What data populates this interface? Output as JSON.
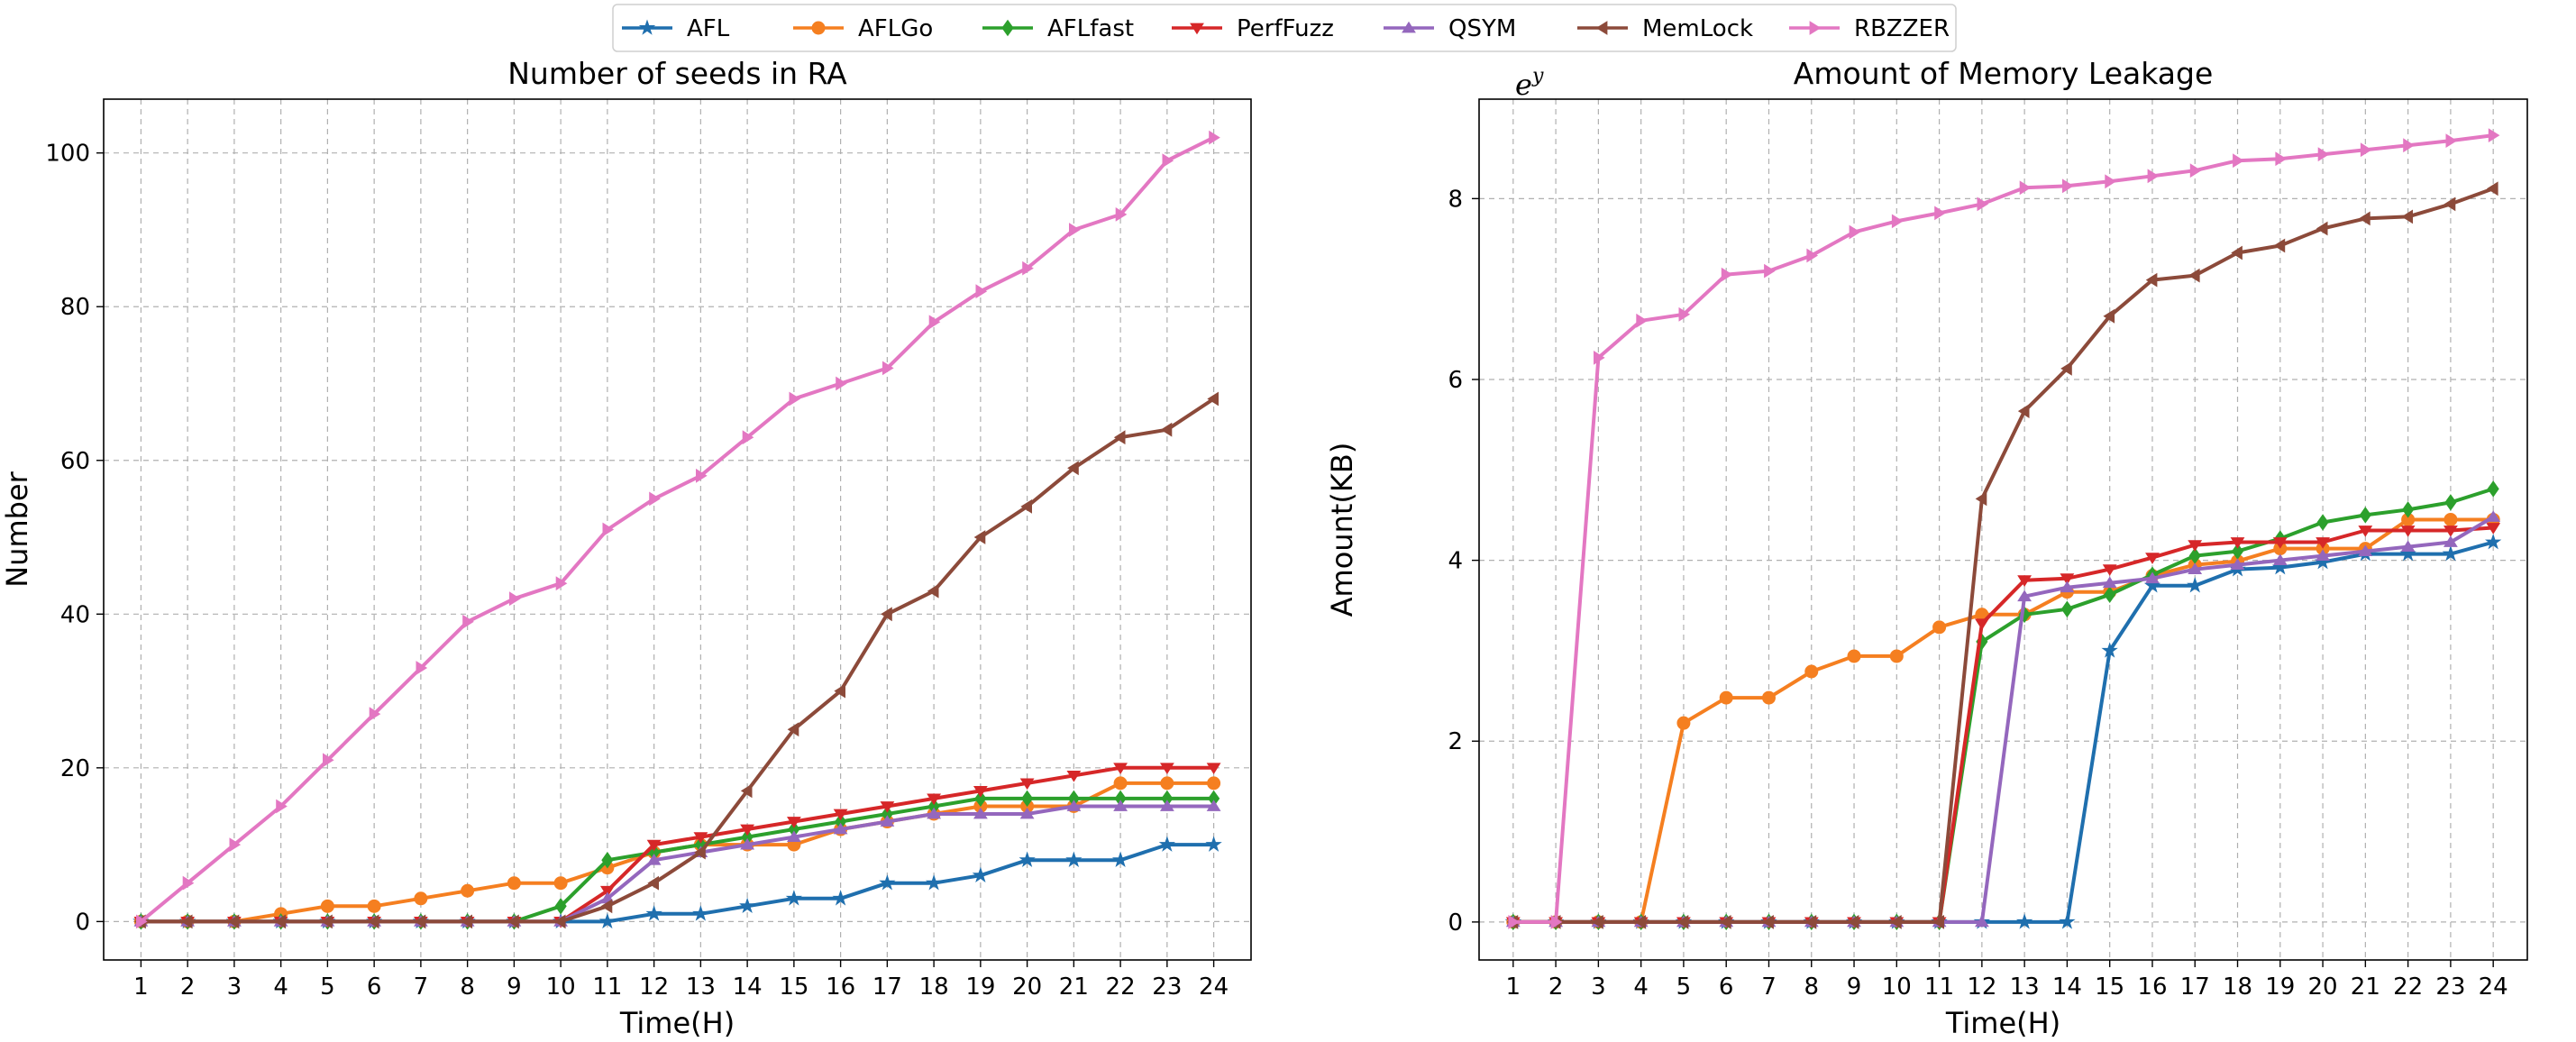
{
  "legend": {
    "entries": [
      {
        "name": "AFL",
        "color": "#1f6fae",
        "marker": "star"
      },
      {
        "name": "AFLGo",
        "color": "#f57f20",
        "marker": "circle"
      },
      {
        "name": "AFLfast",
        "color": "#2ca02c",
        "marker": "diamond"
      },
      {
        "name": "PerfFuzz",
        "color": "#d62728",
        "marker": "triangle-down"
      },
      {
        "name": "QSYM",
        "color": "#9467bd",
        "marker": "triangle-up"
      },
      {
        "name": "MemLock",
        "color": "#8c4a3a",
        "marker": "triangle-left"
      },
      {
        "name": "RBZZER",
        "color": "#e377c2",
        "marker": "triangle-right"
      }
    ],
    "placement": "top-center"
  },
  "chart_data": [
    {
      "type": "line",
      "title": "Number of seeds in RA",
      "xlabel": "Time(H)",
      "ylabel": "Number",
      "corner_label": "",
      "grid": true,
      "x": [
        1,
        2,
        3,
        4,
        5,
        6,
        7,
        8,
        9,
        10,
        11,
        12,
        13,
        14,
        15,
        16,
        17,
        18,
        19,
        20,
        21,
        22,
        23,
        24
      ],
      "xlim": [
        0.2,
        24.8
      ],
      "ylim": [
        -5,
        107
      ],
      "yticks": [
        0,
        20,
        40,
        60,
        80,
        100
      ],
      "series": [
        {
          "name": "AFL",
          "values": [
            0,
            0,
            0,
            0,
            0,
            0,
            0,
            0,
            0,
            0,
            0,
            1,
            1,
            2,
            3,
            3,
            5,
            5,
            6,
            8,
            8,
            8,
            10,
            10
          ]
        },
        {
          "name": "AFLGo",
          "values": [
            0,
            0,
            0,
            1,
            2,
            2,
            3,
            4,
            5,
            5,
            7,
            9,
            10,
            10,
            10,
            12,
            13,
            14,
            15,
            15,
            15,
            18,
            18,
            18
          ]
        },
        {
          "name": "AFLfast",
          "values": [
            0,
            0,
            0,
            0,
            0,
            0,
            0,
            0,
            0,
            2,
            8,
            9,
            10,
            11,
            12,
            13,
            14,
            15,
            16,
            16,
            16,
            16,
            16,
            16
          ]
        },
        {
          "name": "PerfFuzz",
          "values": [
            0,
            0,
            0,
            0,
            0,
            0,
            0,
            0,
            0,
            0,
            4,
            10,
            11,
            12,
            13,
            14,
            15,
            16,
            17,
            18,
            19,
            20,
            20,
            20
          ]
        },
        {
          "name": "QSYM",
          "values": [
            0,
            0,
            0,
            0,
            0,
            0,
            0,
            0,
            0,
            0,
            3,
            8,
            9,
            10,
            11,
            12,
            13,
            14,
            14,
            14,
            15,
            15,
            15,
            15
          ]
        },
        {
          "name": "MemLock",
          "values": [
            0,
            0,
            0,
            0,
            0,
            0,
            0,
            0,
            0,
            0,
            2,
            5,
            9,
            17,
            25,
            30,
            40,
            43,
            50,
            54,
            59,
            63,
            64,
            68
          ]
        },
        {
          "name": "RBZZER",
          "values": [
            0,
            5,
            10,
            15,
            21,
            27,
            33,
            39,
            42,
            44,
            51,
            55,
            58,
            63,
            68,
            70,
            72,
            78,
            82,
            85,
            90,
            92,
            99,
            102
          ]
        }
      ]
    },
    {
      "type": "line",
      "title": "Amount of Memory Leakage",
      "xlabel": "Time(H)",
      "ylabel": "Amount(KB)",
      "corner_label": "e",
      "corner_label_sup": "y",
      "grid": true,
      "x": [
        1,
        2,
        3,
        4,
        5,
        6,
        7,
        8,
        9,
        10,
        11,
        12,
        13,
        14,
        15,
        16,
        17,
        18,
        19,
        20,
        21,
        22,
        23,
        24
      ],
      "xlim": [
        0.2,
        24.8
      ],
      "ylim": [
        -0.42,
        9.1
      ],
      "yticks": [
        0,
        2,
        4,
        6,
        8
      ],
      "series": [
        {
          "name": "AFL",
          "values": [
            0,
            0,
            0,
            0,
            0,
            0,
            0,
            0,
            0,
            0,
            0,
            0,
            0,
            0,
            3.0,
            3.72,
            3.72,
            3.9,
            3.92,
            3.98,
            4.07,
            4.07,
            4.07,
            4.2
          ]
        },
        {
          "name": "AFLGo",
          "values": [
            0,
            0,
            0,
            0,
            2.2,
            2.48,
            2.48,
            2.77,
            2.94,
            2.94,
            3.26,
            3.4,
            3.4,
            3.65,
            3.65,
            3.83,
            3.95,
            3.99,
            4.13,
            4.13,
            4.13,
            4.45,
            4.45,
            4.45
          ]
        },
        {
          "name": "AFLfast",
          "values": [
            0,
            0,
            0,
            0,
            0,
            0,
            0,
            0,
            0,
            0,
            0,
            3.1,
            3.4,
            3.46,
            3.62,
            3.84,
            4.05,
            4.1,
            4.24,
            4.42,
            4.5,
            4.56,
            4.64,
            4.79
          ]
        },
        {
          "name": "PerfFuzz",
          "values": [
            0,
            0,
            0,
            0,
            0,
            0,
            0,
            0,
            0,
            0,
            0,
            3.3,
            3.78,
            3.8,
            3.9,
            4.03,
            4.17,
            4.2,
            4.2,
            4.2,
            4.33,
            4.33,
            4.33,
            4.36
          ]
        },
        {
          "name": "QSYM",
          "values": [
            0,
            0,
            0,
            0,
            0,
            0,
            0,
            0,
            0,
            0,
            0,
            0,
            3.6,
            3.7,
            3.75,
            3.8,
            3.9,
            3.95,
            4.0,
            4.05,
            4.1,
            4.15,
            4.2,
            4.48
          ]
        },
        {
          "name": "MemLock",
          "values": [
            0,
            0,
            0,
            0,
            0,
            0,
            0,
            0,
            0,
            0,
            0,
            4.68,
            5.65,
            6.12,
            6.7,
            7.1,
            7.15,
            7.4,
            7.48,
            7.67,
            7.78,
            7.8,
            7.94,
            8.11
          ]
        },
        {
          "name": "RBZZER",
          "values": [
            0,
            0,
            6.24,
            6.65,
            6.72,
            7.16,
            7.2,
            7.37,
            7.63,
            7.75,
            7.84,
            7.94,
            8.12,
            8.14,
            8.19,
            8.25,
            8.31,
            8.42,
            8.44,
            8.49,
            8.54,
            8.59,
            8.64,
            8.7
          ]
        }
      ]
    }
  ]
}
